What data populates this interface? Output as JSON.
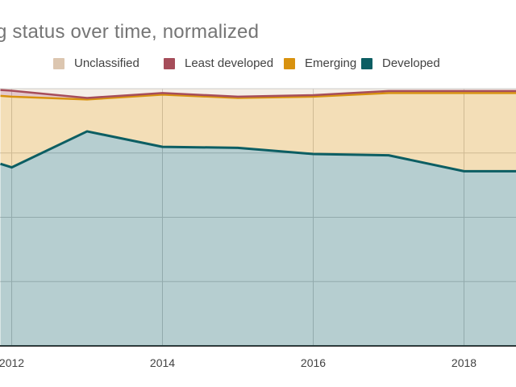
{
  "header": {
    "title": "g status over time, normalized"
  },
  "legend": {
    "items": [
      {
        "label": "Unclassified",
        "color": "#dcc6b0"
      },
      {
        "label": "Least developed",
        "color": "#a64d5a"
      },
      {
        "label": "Emerging",
        "color": "#d8920f"
      },
      {
        "label": "Developed",
        "color": "#0c5e63"
      }
    ]
  },
  "chart_data": {
    "type": "area",
    "mode": "stacked-normalized-100%",
    "title": "g status over time, normalized (title clipped at left edge of screenshot)",
    "x": [
      2011.85,
      2012,
      2013,
      2014,
      2015,
      2016,
      2017,
      2018,
      2018.7
    ],
    "x_note": "first and last x values are the clipped left/right edges of the visible plot",
    "x_ticks": [
      2012,
      2014,
      2016,
      2018
    ],
    "x_tick_labels": [
      "2012",
      "2014",
      "2016",
      "2018"
    ],
    "y_gridlines_percent": [
      0,
      25,
      50,
      75,
      100
    ],
    "ylim": [
      0,
      100
    ],
    "grid": true,
    "legend_position": "top",
    "series_bottom_to_top": [
      {
        "name": "Developed",
        "color": "#0c5e63",
        "fill_opacity": 0.3,
        "stroke_width": 3,
        "values_percent": [
          70.8,
          69.4,
          83.4,
          77.4,
          77.0,
          74.6,
          74.1,
          67.9,
          67.9
        ]
      },
      {
        "name": "Emerging",
        "color": "#d8920f",
        "fill_opacity": 0.3,
        "stroke_width": 2.5,
        "values_percent": [
          26.4,
          27.5,
          12.4,
          20.3,
          19.4,
          22.3,
          24.2,
          30.4,
          30.4
        ]
      },
      {
        "name": "Least developed",
        "color": "#a64d5a",
        "fill_opacity": 0.3,
        "stroke_width": 2.5,
        "values_percent": [
          2.3,
          2.3,
          0.6,
          0.6,
          0.5,
          0.6,
          0.8,
          0.8,
          0.8
        ]
      },
      {
        "name": "Unclassified",
        "color": "#dcc6b0",
        "fill_opacity": 0.3,
        "stroke_width": 0,
        "values_percent": [
          0.5,
          0.8,
          3.6,
          1.7,
          3.1,
          2.5,
          0.9,
          0.9,
          0.9
        ]
      }
    ],
    "colors": {
      "gridline": "#cccccc",
      "baseline": "#333333",
      "axis_label": "#424242",
      "title": "#757575"
    }
  }
}
